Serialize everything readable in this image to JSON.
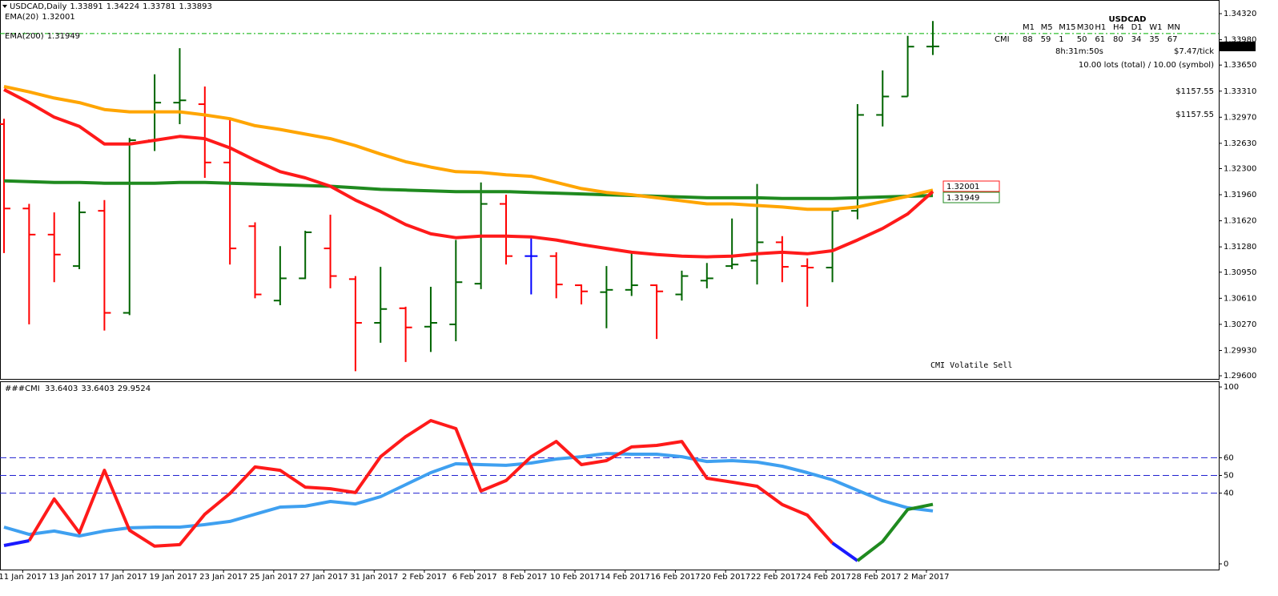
{
  "chart_data": [
    {
      "type": "ohlc",
      "symbol": "USDCAD,Daily",
      "open": [
        1.3288,
        1.3178,
        1.3144,
        1.3103,
        1.3175,
        1.3042,
        1.3267,
        1.3316,
        1.3314,
        1.3238,
        1.3155,
        1.3058,
        1.3087,
        1.3126,
        1.3086,
        1.3029,
        1.3048,
        1.3024,
        1.3027,
        1.308,
        1.3184,
        1.3116,
        1.3116,
        1.3078,
        1.3069,
        1.3072,
        1.3078,
        1.3066,
        1.3084,
        1.3103,
        1.311,
        1.3134,
        1.3103,
        1.3101,
        1.3175,
        1.33,
        1.3324,
        1.33891
      ],
      "high": [
        1.3295,
        1.3184,
        1.3173,
        1.3187,
        1.3189,
        1.327,
        1.3353,
        1.3387,
        1.3337,
        1.3295,
        1.316,
        1.3129,
        1.3149,
        1.317,
        1.309,
        1.3102,
        1.305,
        1.3076,
        1.3137,
        1.3212,
        1.3196,
        1.3139,
        1.3121,
        1.3079,
        1.3103,
        1.3121,
        1.3079,
        1.3097,
        1.3107,
        1.3165,
        1.321,
        1.3142,
        1.3113,
        1.3178,
        1.3314,
        1.3358,
        1.3403,
        1.34224
      ],
      "low": [
        1.312,
        1.3027,
        1.3082,
        1.3099,
        1.3019,
        1.3039,
        1.3253,
        1.3288,
        1.3218,
        1.3105,
        1.3061,
        1.3052,
        1.3086,
        1.3074,
        1.2966,
        1.3003,
        1.2978,
        1.2991,
        1.3005,
        1.3073,
        1.3105,
        1.3066,
        1.3061,
        1.3053,
        1.3022,
        1.3064,
        1.3008,
        1.3058,
        1.3074,
        1.3099,
        1.3079,
        1.3082,
        1.305,
        1.3082,
        1.3164,
        1.3285,
        1.3324,
        1.33781
      ],
      "close": [
        1.3178,
        1.3144,
        1.3118,
        1.3173,
        1.3042,
        1.3267,
        1.3316,
        1.3319,
        1.3238,
        1.3126,
        1.3066,
        1.3087,
        1.3147,
        1.309,
        1.3029,
        1.3047,
        1.3023,
        1.3029,
        1.3082,
        1.3184,
        1.3116,
        1.3116,
        1.3079,
        1.307,
        1.3072,
        1.3078,
        1.307,
        1.309,
        1.3087,
        1.3105,
        1.3134,
        1.3102,
        1.3101,
        1.3175,
        1.33,
        1.3324,
        1.3389,
        1.33893
      ],
      "up_color": "#006400",
      "down_color": "#ff0000",
      "doji_color": "#0000ff",
      "lines": [
        {
          "name": "EMA(20)",
          "color": "#ff1a1a",
          "values": [
            1.3333,
            1.3316,
            1.3297,
            1.3285,
            1.3262,
            1.3262,
            1.3267,
            1.3272,
            1.3269,
            1.3257,
            1.3241,
            1.3226,
            1.3218,
            1.3207,
            1.3189,
            1.3174,
            1.3157,
            1.3145,
            1.314,
            1.3142,
            1.3142,
            1.3141,
            1.3137,
            1.3131,
            1.3126,
            1.3121,
            1.3118,
            1.3116,
            1.3115,
            1.3116,
            1.3119,
            1.3121,
            1.3119,
            1.3123,
            1.3137,
            1.3152,
            1.3171,
            1.32001
          ]
        },
        {
          "color": "#ffa500",
          "values": [
            1.3337,
            1.333,
            1.3322,
            1.3316,
            1.3307,
            1.3304,
            1.3304,
            1.3304,
            1.33,
            1.3295,
            1.3286,
            1.3281,
            1.3275,
            1.3269,
            1.326,
            1.3249,
            1.3239,
            1.3232,
            1.3226,
            1.3225,
            1.3222,
            1.322,
            1.3212,
            1.3204,
            1.3199,
            1.3196,
            1.3192,
            1.3188,
            1.3184,
            1.3184,
            1.3182,
            1.318,
            1.3177,
            1.3177,
            1.318,
            1.3187,
            1.3194,
            1.3202
          ]
        },
        {
          "name": "EMA(200)",
          "color": "#1f8a1f",
          "values": [
            1.3214,
            1.3213,
            1.3212,
            1.3212,
            1.3211,
            1.3211,
            1.3211,
            1.3212,
            1.3212,
            1.3211,
            1.321,
            1.3209,
            1.3208,
            1.3207,
            1.3205,
            1.3203,
            1.3202,
            1.3201,
            1.32,
            1.32,
            1.32,
            1.3199,
            1.3198,
            1.3197,
            1.3196,
            1.3195,
            1.3194,
            1.3193,
            1.3192,
            1.3192,
            1.3192,
            1.3191,
            1.3191,
            1.3191,
            1.3192,
            1.3193,
            1.3194,
            1.31949
          ]
        }
      ],
      "reference_line": 1.3406,
      "reference_color": "#00b000",
      "ylim": [
        1.29559,
        1.34477
      ],
      "yticks": [
        {
          "value": 1.296,
          "label": "1.29600"
        },
        {
          "value": 1.2993,
          "label": "1.29930"
        },
        {
          "value": 1.3027,
          "label": "1.30270"
        },
        {
          "value": 1.3061,
          "label": "1.30610"
        },
        {
          "value": 1.3095,
          "label": "1.30950"
        },
        {
          "value": 1.3128,
          "label": "1.31280"
        },
        {
          "value": 1.3162,
          "label": "1.31620"
        },
        {
          "value": 1.3196,
          "label": "1.31960"
        },
        {
          "value": 1.323,
          "label": "1.32300"
        },
        {
          "value": 1.3263,
          "label": "1.32630"
        },
        {
          "value": 1.3297,
          "label": "1.32970"
        },
        {
          "value": 1.3331,
          "label": "1.33310"
        },
        {
          "value": 1.3365,
          "label": "1.33650"
        },
        {
          "value": 1.3398,
          "label": "1.33980"
        },
        {
          "value": 1.3432,
          "label": "1.34320"
        }
      ],
      "grid": false
    },
    {
      "type": "line",
      "title": "###CMI",
      "categories": [
        null,
        "11 Jan 2017",
        null,
        "13 Jan 2017",
        null,
        "17 Jan 2017",
        null,
        "19 Jan 2017",
        null,
        "23 Jan 2017",
        null,
        "25 Jan 2017",
        null,
        "27 Jan 2017",
        null,
        "31 Jan 2017",
        null,
        "2 Feb 2017",
        null,
        "6 Feb 2017",
        null,
        "8 Feb 2017",
        null,
        "10 Feb 2017",
        null,
        "14 Feb 2017",
        null,
        "16 Feb 2017",
        null,
        "20 Feb 2017",
        null,
        "22 Feb 2017",
        null,
        "24 Feb 2017",
        null,
        "28 Feb 2017",
        null,
        "2 Mar 2017"
      ],
      "series": [
        {
          "color": "#3fa0f0",
          "values": [
            20.8,
            16.7,
            18.6,
            15.8,
            18.6,
            20.4,
            20.8,
            20.8,
            22.2,
            24.0,
            28.1,
            32.1,
            32.6,
            35.3,
            33.9,
            38.0,
            44.8,
            51.6,
            56.6,
            56.1,
            55.7,
            57.0,
            59.3,
            60.6,
            62.4,
            62.0,
            62.0,
            60.6,
            57.9,
            58.4,
            57.5,
            55.2,
            51.6,
            47.5,
            41.6,
            35.7,
            31.7,
            29.9524
          ]
        },
        {
          "color": "#ff1a1a",
          "values": [
            null,
            13.1,
            36.7,
            17.6,
            52.9,
            19.0,
            10.0,
            10.9,
            28.1,
            39.8,
            54.8,
            52.9,
            43.4,
            42.5,
            40.3,
            60.6,
            71.9,
            81.0,
            76.5,
            41.2,
            47.1,
            60.6,
            69.2,
            56.1,
            58.4,
            66.1,
            67.0,
            69.2,
            48.4,
            46.2,
            43.9,
            33.5,
            27.6,
            11.8,
            null,
            null,
            null,
            null
          ]
        },
        {
          "color": "#1a1aff",
          "values": [
            10.4,
            13.1,
            null,
            null,
            null,
            null,
            null,
            null,
            null,
            null,
            null,
            null,
            null,
            null,
            null,
            null,
            null,
            null,
            null,
            null,
            null,
            null,
            null,
            null,
            null,
            null,
            null,
            null,
            null,
            null,
            null,
            null,
            null,
            11.8,
            1.8,
            null,
            null,
            null
          ]
        },
        {
          "color": "#1f8a1f",
          "values": [
            null,
            null,
            null,
            null,
            null,
            null,
            null,
            null,
            null,
            null,
            null,
            null,
            null,
            null,
            null,
            null,
            null,
            null,
            null,
            null,
            null,
            null,
            null,
            null,
            null,
            null,
            null,
            null,
            null,
            null,
            null,
            null,
            null,
            null,
            1.8,
            12.7,
            30.8,
            33.6403
          ]
        }
      ],
      "levels": [
        40,
        50,
        60
      ],
      "level_color": "#2020d0",
      "ylim": [
        -3.2,
        102.3
      ],
      "yticks": [
        0,
        40,
        50,
        60,
        100
      ]
    }
  ],
  "overlay": {
    "symbol": "USDCAD",
    "timeframes": [
      "M1",
      "M5",
      "M15",
      "M30",
      "H1",
      "H4",
      "D1",
      "W1",
      "MN"
    ],
    "cmi_label": "CMI",
    "cmi_values": [
      {
        "value": 88,
        "color": "#22b14c"
      },
      {
        "value": 59,
        "color": "#666666"
      },
      {
        "value": 1,
        "color": "#ff0000"
      },
      {
        "value": 50,
        "color": "#666666"
      },
      {
        "value": 61,
        "color": "#22b14c"
      },
      {
        "value": 80,
        "color": "#22b14c"
      },
      {
        "value": 34,
        "color": "#ff0000"
      },
      {
        "value": 35,
        "color": "#ff0000"
      },
      {
        "value": 67,
        "color": "#22b14c"
      }
    ],
    "timer": "8h:31m:50s",
    "tick_value": "$7.47/tick",
    "lots": "10.00 lots (total) / 10.00 (symbol)",
    "profit": "$1157.55",
    "profit_small": "$1157.55",
    "signal": "CMI Volatile Sell"
  }
}
